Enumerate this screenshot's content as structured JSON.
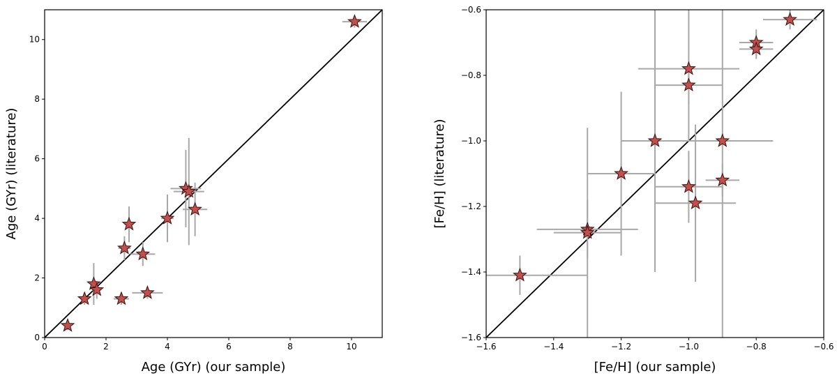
{
  "colors": {
    "marker": "#c0504d",
    "errorbar": "#a8a8a8",
    "line": "#000000"
  },
  "chart_data": [
    {
      "type": "scatter",
      "title": "",
      "xlabel": "Age (GYr) (our sample)",
      "ylabel": "Age (GYr) (literature)",
      "xlim": [
        0,
        11
      ],
      "ylim": [
        0,
        11
      ],
      "xticks": [
        0,
        2,
        4,
        6,
        8,
        10
      ],
      "yticks": [
        0,
        2,
        4,
        6,
        8,
        10
      ],
      "xtick_labels": [
        "0",
        "2",
        "4",
        "6",
        "8",
        "10"
      ],
      "ytick_labels": [
        "0",
        "2",
        "4",
        "6",
        "8",
        "10"
      ],
      "reference_line": "y = x",
      "points": [
        {
          "x": 10.1,
          "y": 10.6,
          "xerr": 0.4,
          "yerr": 0.2
        },
        {
          "x": 0.75,
          "y": 0.4,
          "xerr": 0.1,
          "yerr": 0.15
        },
        {
          "x": 1.3,
          "y": 1.3,
          "xerr": 0.15,
          "yerr": 0.2
        },
        {
          "x": 1.6,
          "y": 1.8,
          "xerr": 0.1,
          "yerr": 0.7
        },
        {
          "x": 1.7,
          "y": 1.6,
          "xerr": 0.15,
          "yerr": 0.3
        },
        {
          "x": 2.5,
          "y": 1.3,
          "xerr": 0.25,
          "yerr": 0.2
        },
        {
          "x": 2.6,
          "y": 3.0,
          "xerr": 0.2,
          "yerr": 0.4
        },
        {
          "x": 2.75,
          "y": 3.8,
          "xerr": 0.15,
          "yerr": 0.6
        },
        {
          "x": 3.2,
          "y": 2.8,
          "xerr": 0.4,
          "yerr": 0.4
        },
        {
          "x": 3.35,
          "y": 1.5,
          "xerr": 0.5,
          "yerr": 0.2
        },
        {
          "x": 4.0,
          "y": 4.0,
          "xerr": 0.2,
          "yerr": 0.8
        },
        {
          "x": 4.6,
          "y": 5.0,
          "xerr": 0.5,
          "yerr": 1.3
        },
        {
          "x": 4.7,
          "y": 4.9,
          "xerr": 0.5,
          "yerr": 1.8
        },
        {
          "x": 4.9,
          "y": 4.3,
          "xerr": 0.4,
          "yerr": 0.9
        }
      ]
    },
    {
      "type": "scatter",
      "title": "",
      "xlabel": "[Fe/H] (our sample)",
      "ylabel": "[Fe/H] (literature)",
      "xlim": [
        -1.6,
        -0.6
      ],
      "ylim": [
        -1.6,
        -0.6
      ],
      "xticks": [
        -1.6,
        -1.4,
        -1.2,
        -1.0,
        -0.8,
        -0.6
      ],
      "yticks": [
        -1.6,
        -1.4,
        -1.2,
        -1.0,
        -0.8,
        -0.6
      ],
      "xtick_labels": [
        "−1.6",
        "−1.4",
        "−1.2",
        "−1.0",
        "−0.8",
        "−0.6"
      ],
      "ytick_labels": [
        "−1.6",
        "−1.4",
        "−1.2",
        "−1.0",
        "−0.8",
        "−0.6"
      ],
      "reference_line": "y = x",
      "points": [
        {
          "x": -0.7,
          "y": -0.63,
          "xerr": 0.08,
          "yerr": 0.03
        },
        {
          "x": -0.8,
          "y": -0.7,
          "xerr": 0.05,
          "yerr": 0.04
        },
        {
          "x": -0.8,
          "y": -0.72,
          "xerr": 0.05,
          "yerr": 0.03
        },
        {
          "x": -1.0,
          "y": -0.78,
          "xerr": 0.15,
          "yerr": 0.22
        },
        {
          "x": -1.0,
          "y": -0.83,
          "xerr": 0.1,
          "yerr": 0.06
        },
        {
          "x": -1.1,
          "y": -1.0,
          "xerr": 0.1,
          "yerr": 0.4
        },
        {
          "x": -0.9,
          "y": -1.0,
          "xerr": 0.15,
          "yerr": 0.65
        },
        {
          "x": -1.2,
          "y": -1.1,
          "xerr": 0.1,
          "yerr": 0.25
        },
        {
          "x": -0.9,
          "y": -1.12,
          "xerr": 0.05,
          "yerr": 0.05
        },
        {
          "x": -1.0,
          "y": -1.14,
          "xerr": 0.1,
          "yerr": 0.11
        },
        {
          "x": -0.98,
          "y": -1.19,
          "xerr": 0.12,
          "yerr": 0.24
        },
        {
          "x": -1.3,
          "y": -1.27,
          "xerr": 0.15,
          "yerr": 0.09
        },
        {
          "x": -1.3,
          "y": -1.28,
          "xerr": 0.1,
          "yerr": 0.32
        },
        {
          "x": -1.5,
          "y": -1.41,
          "xerr": 0.2,
          "yerr": 0.06
        }
      ]
    }
  ]
}
